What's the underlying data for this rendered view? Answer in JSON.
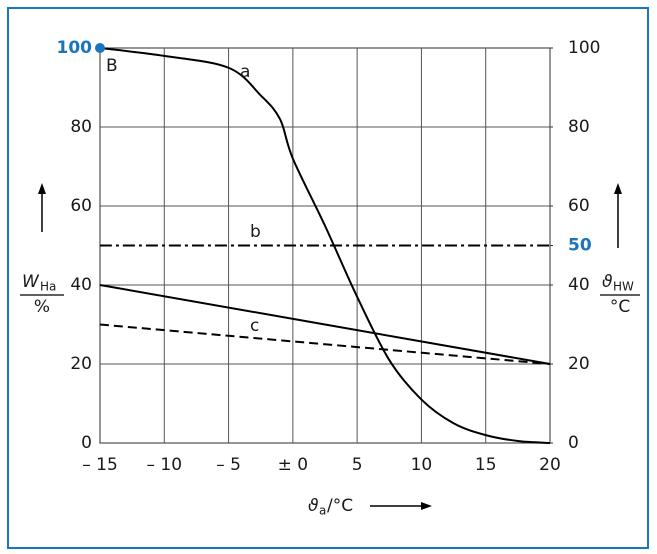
{
  "chart_data": {
    "type": "line",
    "x_label": {
      "symbol": "ϑ",
      "subscript": "a",
      "unit": "/°C"
    },
    "y_label": {
      "symbol": "W",
      "subscript": "Ha",
      "unit": "%"
    },
    "y2_label": {
      "symbol": "ϑ",
      "subscript": "HW",
      "unit": "°C"
    },
    "xlim": [
      -15,
      20
    ],
    "xticks": [
      {
        "value": -15,
        "label": "– 15"
      },
      {
        "value": -10,
        "label": "– 10"
      },
      {
        "value": -5,
        "label": "– 5"
      },
      {
        "value": 0,
        "label": "± 0"
      },
      5,
      10,
      15,
      20
    ],
    "ylim": [
      0,
      100
    ],
    "yticks": [
      0,
      20,
      40,
      60,
      80,
      100
    ],
    "y2lim": [
      0,
      100
    ],
    "y2ticks": [
      0,
      20,
      40,
      50,
      60,
      80,
      100
    ],
    "highlight_color": "#1a75bc",
    "highlighted_yticks": [
      5
    ],
    "highlighted_y2ticks": [
      3
    ],
    "grid": true,
    "series": [
      {
        "name": "a",
        "color": "#000000",
        "style": "solid",
        "x": [
          -15,
          -10,
          -5,
          -2.5,
          -1,
          0,
          2.5,
          5,
          7.5,
          10,
          12.5,
          15,
          17.5,
          20
        ],
        "values": [
          100,
          98,
          95,
          88,
          82,
          72,
          55,
          37,
          21,
          11,
          5,
          2,
          0.5,
          0
        ]
      },
      {
        "name": "b",
        "color": "#000000",
        "style": "dashdot",
        "axis": "y2",
        "x": [
          -15,
          20
        ],
        "values": [
          50,
          50
        ]
      },
      {
        "color": "#000000",
        "style": "solid",
        "axis": "y2",
        "x": [
          -15,
          20
        ],
        "values": [
          40,
          20
        ]
      },
      {
        "name": "c",
        "color": "#000000",
        "style": "dashed",
        "axis": "y2",
        "x": [
          -15,
          20
        ],
        "values": [
          30,
          20
        ]
      }
    ],
    "annotations": [
      {
        "text": "B",
        "x": -15,
        "y": 100
      }
    ]
  }
}
